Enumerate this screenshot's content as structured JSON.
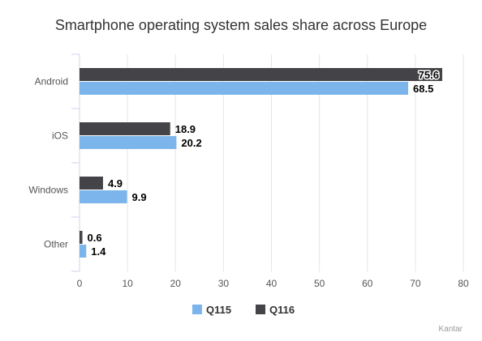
{
  "chart_data": {
    "type": "bar",
    "orientation": "horizontal",
    "title": "Smartphone operating system sales share across Europe",
    "categories": [
      "Android",
      "iOS",
      "Windows",
      "Other"
    ],
    "series": [
      {
        "name": "Q116",
        "color": "#434348",
        "values": [
          75.6,
          18.9,
          4.9,
          0.6
        ]
      },
      {
        "name": "Q115",
        "color": "#7cb5ec",
        "values": [
          68.5,
          20.2,
          9.9,
          1.4
        ]
      }
    ],
    "legend_order": [
      "Q115",
      "Q116"
    ],
    "xlim": [
      0,
      80
    ],
    "ticks": [
      "0",
      "10",
      "20",
      "30",
      "40",
      "50",
      "60",
      "70",
      "80"
    ],
    "grid": true,
    "legend_position": "bottom",
    "credit": "Kantar"
  }
}
